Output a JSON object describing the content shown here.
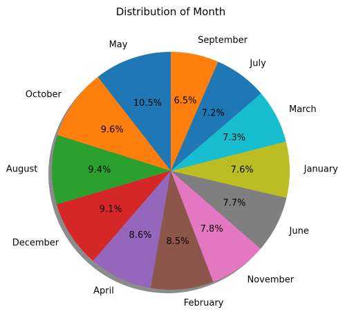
{
  "chart_data": {
    "type": "pie",
    "title": "Distribution of Month",
    "start_angle_deg": 90,
    "direction": "counterclockwise",
    "shadow": true,
    "slices": [
      {
        "label": "May",
        "value": 10.5,
        "pct_label": "10.5%",
        "color": "#1f77b4"
      },
      {
        "label": "October",
        "value": 9.6,
        "pct_label": "9.6%",
        "color": "#ff7f0e"
      },
      {
        "label": "August",
        "value": 9.4,
        "pct_label": "9.4%",
        "color": "#2ca02c"
      },
      {
        "label": "December",
        "value": 9.1,
        "pct_label": "9.1%",
        "color": "#d62728"
      },
      {
        "label": "April",
        "value": 8.6,
        "pct_label": "8.6%",
        "color": "#9467bd"
      },
      {
        "label": "February",
        "value": 8.5,
        "pct_label": "8.5%",
        "color": "#8c564b"
      },
      {
        "label": "November",
        "value": 7.8,
        "pct_label": "7.8%",
        "color": "#e377c2"
      },
      {
        "label": "June",
        "value": 7.7,
        "pct_label": "7.7%",
        "color": "#7f7f7f"
      },
      {
        "label": "January",
        "value": 7.6,
        "pct_label": "7.6%",
        "color": "#bcbd22"
      },
      {
        "label": "March",
        "value": 7.3,
        "pct_label": "7.3%",
        "color": "#17becf"
      },
      {
        "label": "July",
        "value": 7.2,
        "pct_label": "7.2%",
        "color": "#1f77b4"
      },
      {
        "label": "September",
        "value": 6.5,
        "pct_label": "6.5%",
        "color": "#ff7f0e"
      }
    ]
  }
}
